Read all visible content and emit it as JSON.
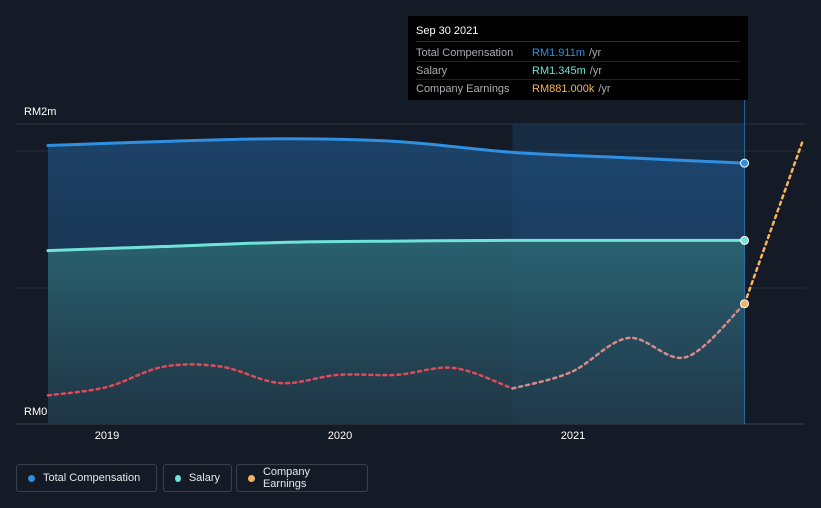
{
  "chart_data": {
    "type": "area",
    "y_unit_label_top": "RM2m",
    "y_unit_label_bottom": "RM0",
    "ylim": [
      0,
      2.2
    ],
    "x_range": [
      "2018-09-30",
      "2021-12-31"
    ],
    "x_ticks": [
      "2019",
      "2020",
      "2021"
    ],
    "highlight_start": "2020-09-30",
    "series": [
      {
        "name": "Total Compensation",
        "color": "#2f8fe0",
        "style": "solid-area",
        "points": [
          {
            "x": "2018-09-30",
            "y": 2.04
          },
          {
            "x": "2019-03-31",
            "y": 2.07
          },
          {
            "x": "2019-09-30",
            "y": 2.09
          },
          {
            "x": "2020-03-31",
            "y": 2.07
          },
          {
            "x": "2020-09-30",
            "y": 1.99
          },
          {
            "x": "2021-03-31",
            "y": 1.95
          },
          {
            "x": "2021-09-30",
            "y": 1.911
          }
        ]
      },
      {
        "name": "Salary",
        "color": "#6fe3d8",
        "style": "solid-area",
        "points": [
          {
            "x": "2018-09-30",
            "y": 1.27
          },
          {
            "x": "2019-03-31",
            "y": 1.3
          },
          {
            "x": "2019-09-30",
            "y": 1.33
          },
          {
            "x": "2020-03-31",
            "y": 1.34
          },
          {
            "x": "2020-09-30",
            "y": 1.345
          },
          {
            "x": "2021-03-31",
            "y": 1.345
          },
          {
            "x": "2021-09-30",
            "y": 1.345
          }
        ]
      },
      {
        "name": "Company Earnings",
        "color": "#f5b45c",
        "style": "dotted",
        "points": [
          {
            "x": "2018-09-30",
            "y": 0.21
          },
          {
            "x": "2018-12-31",
            "y": 0.27
          },
          {
            "x": "2019-03-31",
            "y": 0.42
          },
          {
            "x": "2019-06-30",
            "y": 0.42
          },
          {
            "x": "2019-09-30",
            "y": 0.3
          },
          {
            "x": "2019-12-31",
            "y": 0.36
          },
          {
            "x": "2020-03-31",
            "y": 0.36
          },
          {
            "x": "2020-06-30",
            "y": 0.41
          },
          {
            "x": "2020-09-30",
            "y": 0.26
          },
          {
            "x": "2020-12-31",
            "y": 0.38
          },
          {
            "x": "2021-03-31",
            "y": 0.63
          },
          {
            "x": "2021-06-30",
            "y": 0.49
          },
          {
            "x": "2021-09-30",
            "y": 0.881
          },
          {
            "x": "2021-12-31",
            "y": 2.08
          }
        ]
      }
    ]
  },
  "tooltip": {
    "date": "Sep 30 2021",
    "rows": [
      {
        "label": "Total Compensation",
        "value": "RM1.911m",
        "unit": "/yr",
        "color": "#2f8fe0"
      },
      {
        "label": "Salary",
        "value": "RM1.345m",
        "unit": "/yr",
        "color": "#6fe3d8"
      },
      {
        "label": "Company Earnings",
        "value": "RM881.000k",
        "unit": "/yr",
        "color": "#f5b45c"
      }
    ]
  },
  "legend": [
    {
      "label": "Total Compensation",
      "color": "#2f8fe0"
    },
    {
      "label": "Salary",
      "color": "#6fe3d8"
    },
    {
      "label": "Company Earnings",
      "color": "#f5b45c"
    }
  ]
}
